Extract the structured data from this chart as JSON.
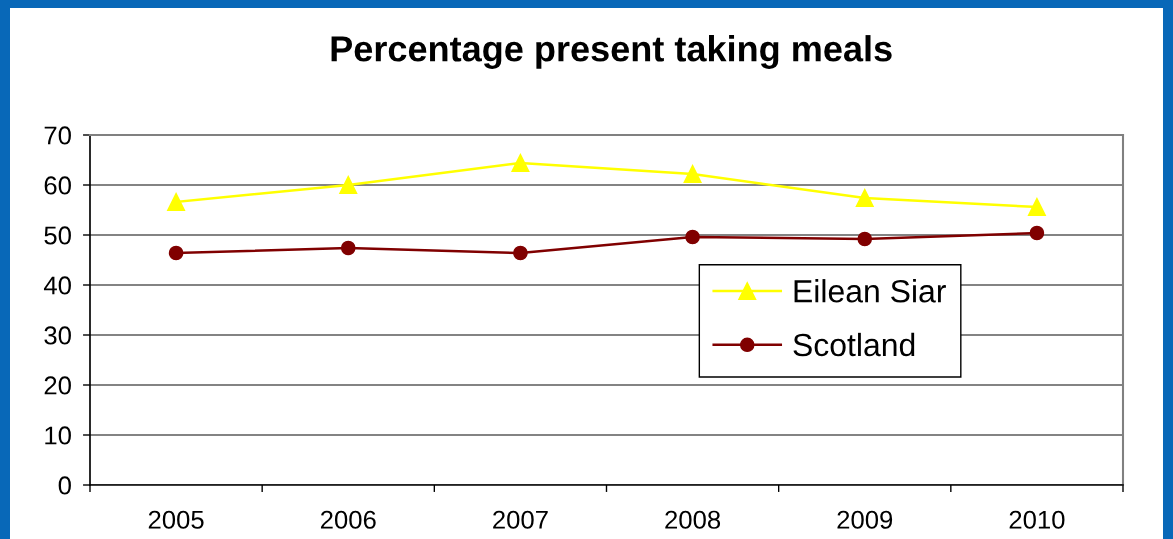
{
  "chart_data": {
    "type": "line",
    "title": "Percentage present taking meals",
    "categories": [
      "2005",
      "2006",
      "2007",
      "2008",
      "2009",
      "2010"
    ],
    "series": [
      {
        "name": "Eilean Siar",
        "color": "#ffff00",
        "marker": "triangle",
        "values": [
          56.6,
          60.0,
          64.4,
          62.2,
          57.4,
          55.6
        ]
      },
      {
        "name": "Scotland",
        "color": "#800000",
        "marker": "circle",
        "values": [
          46.4,
          47.4,
          46.4,
          49.6,
          49.2,
          50.4
        ]
      }
    ],
    "ylim": [
      0,
      70
    ],
    "yticks": [
      0,
      10,
      20,
      30,
      40,
      50,
      60,
      70
    ],
    "grid": "y",
    "legend": "right",
    "line_style": "solid"
  }
}
